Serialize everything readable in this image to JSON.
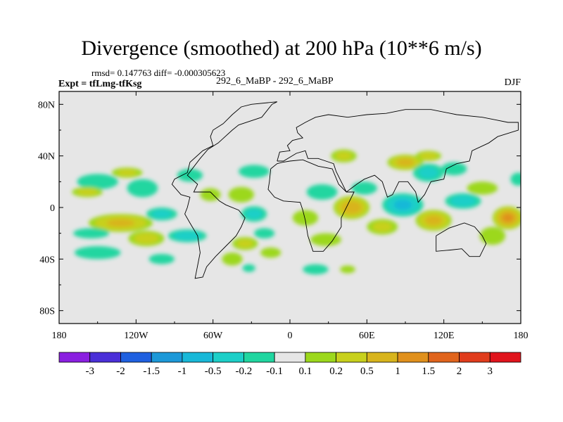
{
  "chart_data": {
    "type": "heatmap",
    "subtype": "filled-contour-map",
    "title": "Divergence (smoothed) at 200 hPa (10**6 m/s)",
    "stats_text": "rmsd= 0.147763 diff= -0.000305623",
    "left_label": "Expt = tfLmg-tfKsg",
    "center_label": "292_6_MaBP - 292_6_MaBP",
    "right_label": "DJF",
    "x_range": [
      -180,
      180
    ],
    "y_range": [
      -90,
      90
    ],
    "x_ticks": [
      {
        "value": -180,
        "label": "180"
      },
      {
        "value": -120,
        "label": "120W"
      },
      {
        "value": -60,
        "label": "60W"
      },
      {
        "value": 0,
        "label": "0"
      },
      {
        "value": 60,
        "label": "60E"
      },
      {
        "value": 120,
        "label": "120E"
      },
      {
        "value": 180,
        "label": "180"
      }
    ],
    "y_ticks": [
      {
        "value": 80,
        "label": "80N"
      },
      {
        "value": 40,
        "label": "40N"
      },
      {
        "value": 0,
        "label": "0"
      },
      {
        "value": -40,
        "label": "40S"
      },
      {
        "value": -80,
        "label": "80S"
      }
    ],
    "colorbar": {
      "colors": [
        "#8a1fe0",
        "#4a2fd8",
        "#1f60e0",
        "#1c98d8",
        "#18b8d8",
        "#1ccfc8",
        "#20d6a0",
        "#e6e6e6",
        "#9cd81c",
        "#c8d01c",
        "#d8b41c",
        "#e0901c",
        "#e0641c",
        "#e03c1c",
        "#e0141c"
      ],
      "labels": [
        "-3",
        "-2",
        "-1.5",
        "-1",
        "-0.5",
        "-0.2",
        "-0.1",
        "0.1",
        "0.2",
        "0.5",
        "1",
        "1.5",
        "2",
        "3"
      ]
    },
    "anomalies": [
      {
        "lon": -150,
        "lat": 20,
        "value": -0.25,
        "rlon": 16,
        "rlat": 6
      },
      {
        "lon": -115,
        "lat": 15,
        "value": -0.3,
        "rlon": 12,
        "rlat": 7
      },
      {
        "lon": -158,
        "lat": 12,
        "value": 0.4,
        "rlon": 12,
        "rlat": 4
      },
      {
        "lon": -127,
        "lat": 27,
        "value": 0.35,
        "rlon": 12,
        "rlat": 4
      },
      {
        "lon": -78,
        "lat": 25,
        "value": -0.15,
        "rlon": 10,
        "rlat": 5
      },
      {
        "lon": -62,
        "lat": 10,
        "value": 0.25,
        "rlon": 8,
        "rlat": 5
      },
      {
        "lon": -132,
        "lat": -12,
        "value": 0.8,
        "rlon": 25,
        "rlat": 7
      },
      {
        "lon": -112,
        "lat": -24,
        "value": 0.45,
        "rlon": 14,
        "rlat": 6
      },
      {
        "lon": -155,
        "lat": -20,
        "value": -0.2,
        "rlon": 14,
        "rlat": 4
      },
      {
        "lon": -100,
        "lat": -5,
        "value": -0.35,
        "rlon": 12,
        "rlat": 5
      },
      {
        "lon": -80,
        "lat": -22,
        "value": -0.5,
        "rlon": 15,
        "rlat": 5
      },
      {
        "lon": -150,
        "lat": -35,
        "value": -0.3,
        "rlon": 18,
        "rlat": 5
      },
      {
        "lon": -100,
        "lat": -40,
        "value": -0.25,
        "rlon": 10,
        "rlat": 4
      },
      {
        "lon": -38,
        "lat": 10,
        "value": 0.3,
        "rlon": 10,
        "rlat": 6
      },
      {
        "lon": -28,
        "lat": 28,
        "value": -0.3,
        "rlon": 12,
        "rlat": 5
      },
      {
        "lon": -28,
        "lat": -5,
        "value": -0.35,
        "rlon": 10,
        "rlat": 6
      },
      {
        "lon": -35,
        "lat": -28,
        "value": 0.35,
        "rlon": 10,
        "rlat": 5
      },
      {
        "lon": -20,
        "lat": -20,
        "value": -0.3,
        "rlon": 8,
        "rlat": 4
      },
      {
        "lon": -45,
        "lat": -40,
        "value": 0.25,
        "rlon": 8,
        "rlat": 5
      },
      {
        "lon": -15,
        "lat": -35,
        "value": 0.2,
        "rlon": 8,
        "rlat": 4
      },
      {
        "lon": -32,
        "lat": -47,
        "value": -0.3,
        "rlon": 5,
        "rlat": 3
      },
      {
        "lon": 12,
        "lat": -8,
        "value": 0.3,
        "rlon": 10,
        "rlat": 6
      },
      {
        "lon": 25,
        "lat": 12,
        "value": -0.3,
        "rlon": 12,
        "rlat": 6
      },
      {
        "lon": 28,
        "lat": -25,
        "value": 0.25,
        "rlon": 12,
        "rlat": 5
      },
      {
        "lon": 20,
        "lat": -48,
        "value": -0.25,
        "rlon": 10,
        "rlat": 4
      },
      {
        "lon": 45,
        "lat": -48,
        "value": 0.25,
        "rlon": 6,
        "rlat": 3
      },
      {
        "lon": 42,
        "lat": 40,
        "value": 0.35,
        "rlon": 10,
        "rlat": 5
      },
      {
        "lon": 48,
        "lat": 0,
        "value": 1.1,
        "rlon": 14,
        "rlat": 9
      },
      {
        "lon": 58,
        "lat": 15,
        "value": -0.3,
        "rlon": 10,
        "rlat": 5
      },
      {
        "lon": 72,
        "lat": -15,
        "value": 0.35,
        "rlon": 12,
        "rlat": 6
      },
      {
        "lon": 90,
        "lat": 35,
        "value": 0.9,
        "rlon": 14,
        "rlat": 6
      },
      {
        "lon": 88,
        "lat": 2,
        "value": -0.8,
        "rlon": 16,
        "rlat": 9
      },
      {
        "lon": 108,
        "lat": 27,
        "value": -0.35,
        "rlon": 12,
        "rlat": 7
      },
      {
        "lon": 128,
        "lat": 30,
        "value": -0.2,
        "rlon": 10,
        "rlat": 5
      },
      {
        "lon": 112,
        "lat": -10,
        "value": 0.9,
        "rlon": 14,
        "rlat": 8
      },
      {
        "lon": 135,
        "lat": 5,
        "value": -0.5,
        "rlon": 14,
        "rlat": 6
      },
      {
        "lon": 170,
        "lat": -8,
        "value": 1.4,
        "rlon": 12,
        "rlat": 9
      },
      {
        "lon": 158,
        "lat": -22,
        "value": 0.3,
        "rlon": 10,
        "rlat": 7
      },
      {
        "lon": 150,
        "lat": 15,
        "value": 0.3,
        "rlon": 12,
        "rlat": 5
      },
      {
        "lon": 178,
        "lat": 22,
        "value": -0.3,
        "rlon": 6,
        "rlat": 5
      },
      {
        "lon": 108,
        "lat": 40,
        "value": 0.5,
        "rlon": 10,
        "rlat": 4
      }
    ],
    "coastlines": [
      [
        [
          -10,
          82
        ],
        [
          -30,
          80
        ],
        [
          -38,
          78
        ],
        [
          -45,
          72
        ],
        [
          -52,
          65
        ],
        [
          -60,
          60
        ],
        [
          -62,
          55
        ],
        [
          -60,
          48
        ],
        [
          -68,
          44
        ],
        [
          -78,
          35
        ],
        [
          -80,
          27
        ],
        [
          -90,
          22
        ],
        [
          -92,
          18
        ],
        [
          -85,
          10
        ],
        [
          -78,
          8
        ],
        [
          -80,
          0
        ],
        [
          -82,
          -5
        ],
        [
          -78,
          -12
        ],
        [
          -72,
          -22
        ],
        [
          -70,
          -35
        ],
        [
          -72,
          -45
        ],
        [
          -74,
          -55
        ],
        [
          -68,
          -54
        ],
        [
          -65,
          -46
        ],
        [
          -58,
          -38
        ],
        [
          -50,
          -30
        ],
        [
          -42,
          -22
        ],
        [
          -38,
          -15
        ],
        [
          -35,
          -8
        ],
        [
          -40,
          -2
        ],
        [
          -50,
          2
        ],
        [
          -55,
          5
        ],
        [
          -62,
          12
        ],
        [
          -75,
          12
        ],
        [
          -72,
          18
        ],
        [
          -80,
          25
        ],
        [
          -70,
          38
        ],
        [
          -64,
          45
        ],
        [
          -56,
          50
        ],
        [
          -45,
          60
        ],
        [
          -40,
          64
        ],
        [
          -22,
          70
        ],
        [
          -14,
          80
        ],
        [
          -10,
          82
        ]
      ],
      [
        [
          -15,
          30
        ],
        [
          -16,
          20
        ],
        [
          -17,
          14
        ],
        [
          -12,
          8
        ],
        [
          -5,
          5
        ],
        [
          8,
          4
        ],
        [
          10,
          -2
        ],
        [
          12,
          -10
        ],
        [
          14,
          -22
        ],
        [
          18,
          -34
        ],
        [
          26,
          -34
        ],
        [
          33,
          -26
        ],
        [
          40,
          -15
        ],
        [
          40,
          -8
        ],
        [
          45,
          2
        ],
        [
          50,
          12
        ],
        [
          44,
          12
        ],
        [
          38,
          18
        ],
        [
          33,
          30
        ],
        [
          22,
          32
        ],
        [
          10,
          37
        ],
        [
          0,
          36
        ],
        [
          -6,
          35
        ],
        [
          -10,
          34
        ],
        [
          -15,
          30
        ]
      ],
      [
        [
          -10,
          36
        ],
        [
          -8,
          43
        ],
        [
          0,
          44
        ],
        [
          -2,
          48
        ],
        [
          2,
          52
        ],
        [
          10,
          54
        ],
        [
          6,
          58
        ],
        [
          5,
          62
        ],
        [
          12,
          66
        ],
        [
          20,
          70
        ],
        [
          30,
          72
        ],
        [
          45,
          70
        ],
        [
          60,
          72
        ],
        [
          75,
          73
        ],
        [
          90,
          76
        ],
        [
          110,
          76
        ],
        [
          130,
          72
        ],
        [
          150,
          70
        ],
        [
          160,
          68
        ],
        [
          170,
          66
        ],
        [
          178,
          66
        ],
        [
          178,
          60
        ],
        [
          162,
          55
        ],
        [
          155,
          50
        ],
        [
          142,
          44
        ],
        [
          140,
          36
        ],
        [
          130,
          34
        ],
        [
          122,
          30
        ],
        [
          120,
          22
        ],
        [
          110,
          20
        ],
        [
          105,
          10
        ],
        [
          100,
          4
        ],
        [
          98,
          12
        ],
        [
          92,
          20
        ],
        [
          85,
          20
        ],
        [
          80,
          10
        ],
        [
          76,
          8
        ],
        [
          72,
          20
        ],
        [
          66,
          25
        ],
        [
          58,
          22
        ],
        [
          52,
          18
        ],
        [
          44,
          12
        ],
        [
          36,
          28
        ],
        [
          34,
          34
        ],
        [
          28,
          36
        ],
        [
          22,
          38
        ],
        [
          14,
          38
        ],
        [
          12,
          44
        ],
        [
          5,
          42
        ],
        [
          -5,
          36
        ],
        [
          -10,
          36
        ]
      ],
      [
        [
          114,
          -22
        ],
        [
          114,
          -34
        ],
        [
          125,
          -33
        ],
        [
          134,
          -32
        ],
        [
          140,
          -38
        ],
        [
          148,
          -38
        ],
        [
          153,
          -28
        ],
        [
          150,
          -22
        ],
        [
          144,
          -15
        ],
        [
          136,
          -12
        ],
        [
          130,
          -14
        ],
        [
          124,
          -16
        ],
        [
          114,
          -22
        ]
      ]
    ]
  }
}
